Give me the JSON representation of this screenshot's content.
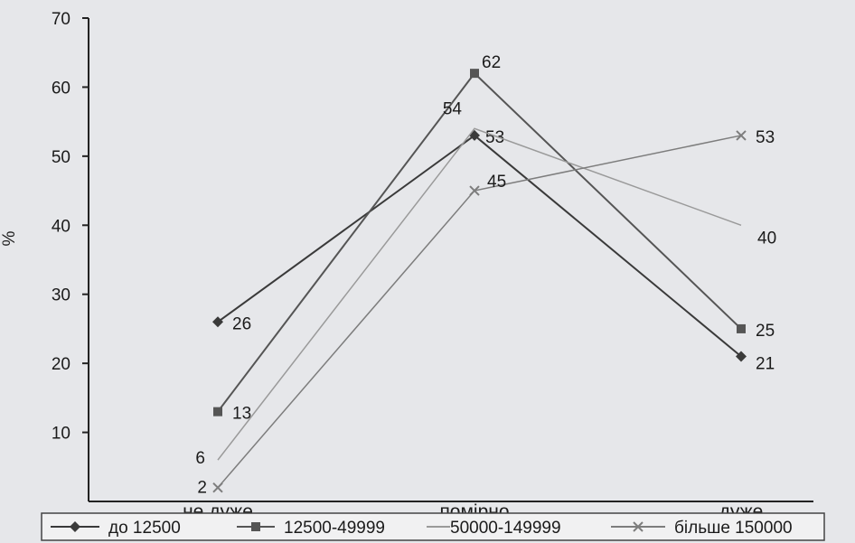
{
  "chart_data": {
    "type": "line",
    "ylabel": "%",
    "xlabel": "",
    "title": "",
    "categories": [
      "не дуже",
      "помірно",
      "дуже"
    ],
    "ylim": [
      0,
      70
    ],
    "yticks": [
      10,
      20,
      30,
      40,
      50,
      60,
      70
    ],
    "grid": false,
    "legend_position": "bottom",
    "series": [
      {
        "name": "до 12500",
        "values": [
          26,
          53,
          21
        ],
        "marker": "diamond",
        "color": "#3a3a3a"
      },
      {
        "name": "12500-49999",
        "values": [
          13,
          62,
          25
        ],
        "marker": "square",
        "color": "#555555"
      },
      {
        "name": "50000-149999",
        "values": [
          6,
          54,
          40
        ],
        "marker": "none",
        "color": "#9a9a9a"
      },
      {
        "name": "більше 150000",
        "values": [
          2,
          45,
          53
        ],
        "marker": "x",
        "color": "#7d7d7d"
      }
    ]
  }
}
